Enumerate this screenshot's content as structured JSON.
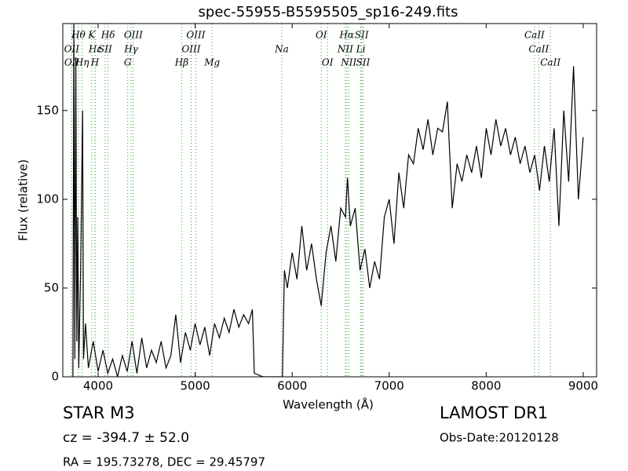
{
  "chart_data": {
    "type": "line",
    "title": "spec-55955-B5595505_sp16-249.fits",
    "x_label": "Wavelength (Å)",
    "y_label": "Flux (relative)",
    "xlim": [
      3636,
      9138
    ],
    "ylim": [
      0,
      199
    ],
    "xticks": [
      4000,
      5000,
      6000,
      7000,
      8000,
      9000
    ],
    "yticks": [
      0,
      50,
      100,
      150
    ],
    "x": [
      3740,
      3750,
      3760,
      3770,
      3780,
      3790,
      3800,
      3820,
      3840,
      3850,
      3870,
      3900,
      3950,
      4000,
      4050,
      4100,
      4150,
      4200,
      4250,
      4300,
      4350,
      4400,
      4450,
      4500,
      4550,
      4600,
      4650,
      4700,
      4750,
      4800,
      4850,
      4900,
      4950,
      5000,
      5050,
      5100,
      5150,
      5200,
      5250,
      5300,
      5350,
      5400,
      5450,
      5500,
      5550,
      5590,
      5610,
      5700,
      5800,
      5900,
      5920,
      5950,
      6000,
      6050,
      6100,
      6150,
      6200,
      6250,
      6300,
      6350,
      6400,
      6450,
      6500,
      6550,
      6570,
      6600,
      6650,
      6700,
      6750,
      6800,
      6850,
      6900,
      6950,
      7000,
      7050,
      7100,
      7150,
      7200,
      7250,
      7300,
      7350,
      7400,
      7450,
      7500,
      7550,
      7600,
      7620,
      7650,
      7700,
      7750,
      7800,
      7850,
      7900,
      7950,
      8000,
      8050,
      8100,
      8150,
      8200,
      8250,
      8300,
      8350,
      8400,
      8450,
      8500,
      8550,
      8600,
      8650,
      8700,
      8750,
      8800,
      8850,
      8900,
      8950,
      9000
    ],
    "series": [
      {
        "name": "flux",
        "color": "#000000",
        "values": [
          0,
          199,
          10,
          180,
          20,
          90,
          5,
          60,
          150,
          10,
          30,
          5,
          20,
          3,
          15,
          2,
          10,
          0,
          12,
          3,
          20,
          2,
          22,
          5,
          15,
          8,
          20,
          5,
          12,
          35,
          8,
          25,
          15,
          30,
          18,
          28,
          12,
          30,
          22,
          33,
          25,
          38,
          28,
          35,
          30,
          38,
          2,
          0,
          0,
          0,
          60,
          50,
          70,
          55,
          85,
          60,
          75,
          55,
          40,
          70,
          85,
          65,
          95,
          90,
          112,
          85,
          95,
          60,
          72,
          50,
          65,
          55,
          90,
          100,
          75,
          115,
          95,
          125,
          120,
          140,
          128,
          145,
          125,
          140,
          138,
          155,
          130,
          95,
          120,
          110,
          125,
          115,
          130,
          112,
          140,
          125,
          145,
          130,
          140,
          125,
          135,
          120,
          130,
          115,
          125,
          105,
          130,
          110,
          140,
          85,
          150,
          110,
          175,
          100,
          135
        ]
      }
    ],
    "line_color": "#2ca02c",
    "line_labels": [
      [
        {
          "label": "Hθ",
          "x": 3797
        },
        {
          "label": "K",
          "x": 3934
        },
        {
          "label": "Hδ",
          "x": 4102
        },
        {
          "label": "OIII",
          "x": 4363
        },
        {
          "label": "OIII",
          "x": 5007
        },
        {
          "label": "OI",
          "x": 6300
        },
        {
          "label": "Hα",
          "x": 6563
        },
        {
          "label": "SII",
          "x": 6717
        },
        {
          "label": "CaII",
          "x": 8498
        }
      ],
      [
        {
          "label": "OII",
          "x": 3727
        },
        {
          "label": "Hε",
          "x": 3970
        },
        {
          "label": "SII",
          "x": 4072
        },
        {
          "label": "Hγ",
          "x": 4340
        },
        {
          "label": "OIII",
          "x": 4959
        },
        {
          "label": "Na",
          "x": 5893
        },
        {
          "label": "NII",
          "x": 6548
        },
        {
          "label": "Li",
          "x": 6708
        },
        {
          "label": "CaII",
          "x": 8542
        }
      ],
      [
        {
          "label": "OII",
          "x": 3729
        },
        {
          "label": "Hη",
          "x": 3835
        },
        {
          "label": "H",
          "x": 3968
        },
        {
          "label": "G",
          "x": 4305
        },
        {
          "label": "Hβ",
          "x": 4861
        },
        {
          "label": "Mg",
          "x": 5175
        },
        {
          "label": "OI",
          "x": 6364
        },
        {
          "label": "NII",
          "x": 6583
        },
        {
          "label": "SII",
          "x": 6731
        },
        {
          "label": "CaII",
          "x": 8662
        }
      ]
    ],
    "footer": {
      "object": "STAR   M3",
      "redshift": "cz = -394.7 ± 52.0",
      "coords": "RA = 195.73278, DEC = 29.45797",
      "survey": "LAMOST DR1",
      "date": "Obs-Date:20120128"
    }
  }
}
